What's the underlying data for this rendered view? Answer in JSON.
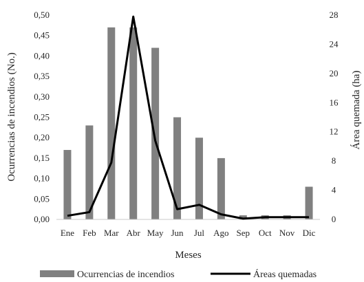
{
  "chart_data": {
    "type": "bar",
    "categories": [
      "Ene",
      "Feb",
      "Mar",
      "Abr",
      "May",
      "Jun",
      "Jul",
      "Ago",
      "Sep",
      "Oct",
      "Nov",
      "Dic"
    ],
    "series": [
      {
        "name": "Ocurrencias de incendios",
        "type": "bar",
        "axis": "left",
        "color": "#808080",
        "values": [
          0.17,
          0.23,
          0.47,
          0.47,
          0.42,
          0.25,
          0.2,
          0.15,
          0.01,
          0.01,
          0.01,
          0.08
        ]
      },
      {
        "name": "Áreas quemadas",
        "type": "line",
        "axis": "right",
        "color": "#000000",
        "values": [
          0.5,
          1.0,
          7.8,
          27.8,
          10.8,
          1.4,
          2.0,
          0.7,
          0.1,
          0.3,
          0.3,
          0.3
        ]
      }
    ],
    "xlabel": "Meses",
    "ylabel": "Ocurrencias de incendios (No.)",
    "y2label": "Área quemada (ha)",
    "ylim": [
      0,
      0.5
    ],
    "y2lim": [
      0,
      28
    ],
    "yticks": [
      "0,00",
      "0,05",
      "0,10",
      "0,15",
      "0,20",
      "0,25",
      "0,30",
      "0,35",
      "0,40",
      "0,45",
      "0,50"
    ],
    "y2ticks": [
      "0",
      "4",
      "8",
      "12",
      "16",
      "20",
      "24",
      "28"
    ],
    "legend_position": "bottom",
    "grid": false
  }
}
